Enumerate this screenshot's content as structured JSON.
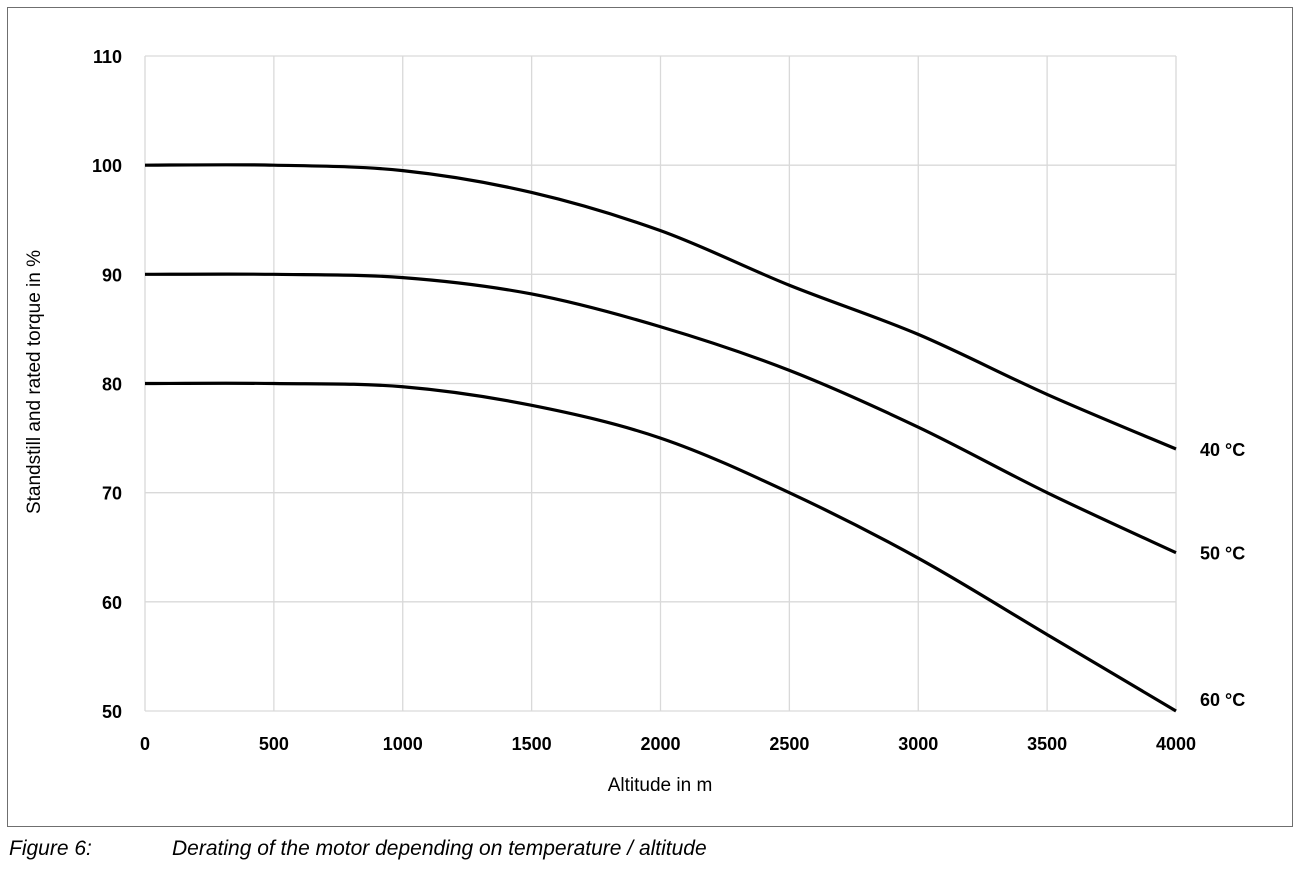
{
  "caption": {
    "number": "Figure 6:",
    "text": "Derating of the motor depending on temperature / altitude"
  },
  "chart_data": {
    "type": "line",
    "title": "",
    "xlabel": "Altitude in m",
    "ylabel": "Standstill and rated torque in %",
    "xlim": [
      0,
      4000
    ],
    "ylim": [
      50,
      110
    ],
    "x_ticks": [
      0,
      500,
      1000,
      1500,
      2000,
      2500,
      3000,
      3500,
      4000
    ],
    "y_ticks": [
      50,
      60,
      70,
      80,
      90,
      100,
      110
    ],
    "grid": true,
    "legend": "none",
    "series": [
      {
        "name": "40 °C",
        "x": [
          0,
          500,
          1000,
          1500,
          2000,
          2500,
          3000,
          3500,
          4000
        ],
        "y": [
          100,
          100,
          99.5,
          97.5,
          94,
          89,
          84.5,
          79,
          74
        ]
      },
      {
        "name": "50 °C",
        "x": [
          0,
          500,
          1000,
          1500,
          2000,
          2500,
          3000,
          3500,
          4000
        ],
        "y": [
          90,
          90,
          89.7,
          88.2,
          85.2,
          81.2,
          76,
          70,
          64.5
        ]
      },
      {
        "name": "60 °C",
        "x": [
          0,
          500,
          1000,
          1500,
          2000,
          2500,
          3000,
          3500,
          4000
        ],
        "y": [
          80,
          80,
          79.7,
          78,
          75,
          70,
          64,
          57,
          50
        ]
      }
    ]
  }
}
